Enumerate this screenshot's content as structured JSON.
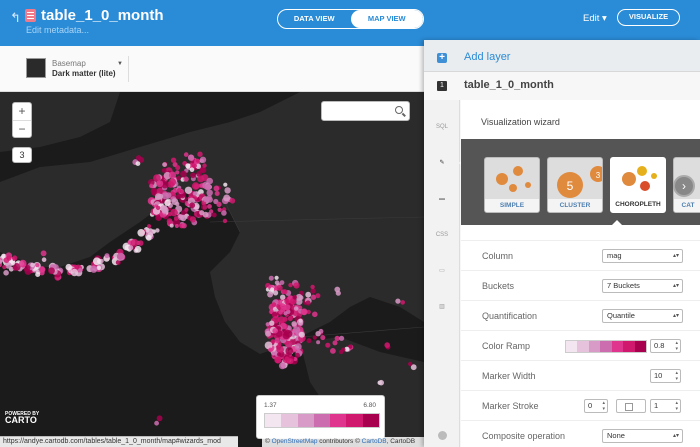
{
  "header": {
    "back_icon": "back-arrow-icon",
    "table_title": "table_1_0_month",
    "edit_metadata": "Edit metadata...",
    "data_view_label": "DATA VIEW",
    "map_view_label": "MAP VIEW",
    "edit_menu_label": "Edit ▾",
    "visualize_label": "VISUALIZE",
    "accent_color": "#2a8bd6"
  },
  "basemap": {
    "label": "Basemap",
    "value": "Dark matter (lite)"
  },
  "map": {
    "zoom_in": "+",
    "zoom_out": "−",
    "zoom_level": "3",
    "legend_min": "1.37",
    "legend_max": "6.80",
    "legend_colors": [
      "#f3e6f0",
      "#e6c2dc",
      "#d89ac6",
      "#cc6db0",
      "#e0358e",
      "#d1186f",
      "#a8004f"
    ],
    "powered_by": "POWERED BY",
    "cartodb_logo": "CARTO",
    "attribution_prefix": "© ",
    "attribution_osm": "OpenStreetMap",
    "attribution_mid": " contributors © ",
    "attribution_cartodb": "CartoDB",
    "attribution_tail": ", CartoDB"
  },
  "statusbar": {
    "url": "https://andye.cartodb.com/tables/table_1_0_month/map#wizards_mod"
  },
  "panel": {
    "add_layer": "Add layer",
    "layer_number": "1",
    "layer_name": "table_1_0_month",
    "sidebar_icons": [
      "SQL",
      "wizard",
      "infowindow",
      "CSS",
      "legend",
      "widgets"
    ],
    "wizard_title": "Visualization wizard",
    "wizard_types": [
      {
        "label": "SIMPLE"
      },
      {
        "label": "CLUSTER"
      },
      {
        "label": "CHOROPLETH"
      },
      {
        "label": "CAT"
      }
    ],
    "fields": {
      "column_label": "Column",
      "column_value": "mag",
      "buckets_label": "Buckets",
      "buckets_value": "7 Buckets",
      "quant_label": "Quantification",
      "quant_value": "Quantile",
      "ramp_label": "Color Ramp",
      "ramp_colors": [
        "#f3e6f0",
        "#e6c2dc",
        "#d89ac6",
        "#cc6db0",
        "#e0358e",
        "#d1186f",
        "#a8004f"
      ],
      "ramp_opacity": "0.8",
      "marker_width_label": "Marker Width",
      "marker_width_value": "10",
      "marker_stroke_label": "Marker Stroke",
      "marker_stroke_value": "0",
      "marker_stroke_opacity": "1",
      "composite_label": "Composite operation",
      "composite_value": "None"
    }
  }
}
